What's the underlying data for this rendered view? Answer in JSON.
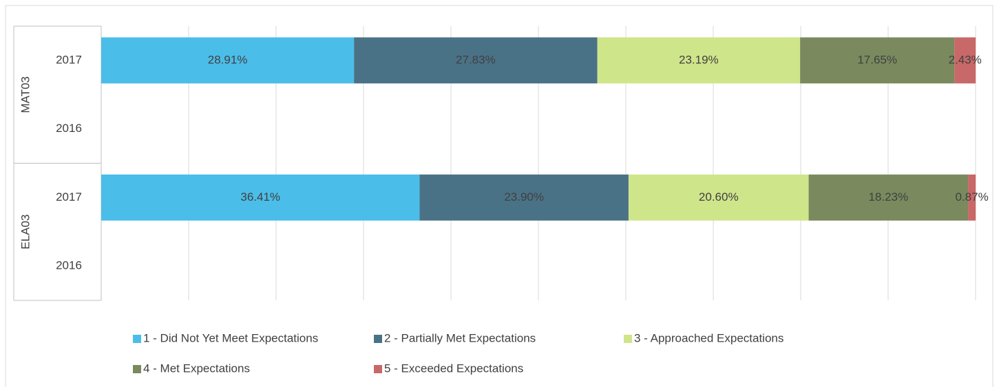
{
  "chart_data": {
    "type": "stacked_bar_horizontal",
    "categories": [
      "2017",
      "2016",
      "2017",
      "2016"
    ],
    "group_labels": [
      "MAT03",
      "ELA03"
    ],
    "xlim": [
      0,
      100
    ],
    "xticks": [
      0,
      10,
      20,
      30,
      40,
      50,
      60,
      70,
      80,
      90,
      100
    ],
    "tick_labels": false,
    "grid": true,
    "legend": "bottom",
    "series": [
      {
        "name": "1 - Did Not Yet Meet Expectations",
        "color": "#4bbde9",
        "values": [
          28.91,
          null,
          36.41,
          null
        ],
        "value_labels": [
          "28.91%",
          null,
          "36.41%",
          null
        ]
      },
      {
        "name": "2 - Partially Met Expectations",
        "color": "#4a7287",
        "values": [
          27.83,
          null,
          23.9,
          null
        ],
        "value_labels": [
          "27.83%",
          null,
          "23.90%",
          null
        ]
      },
      {
        "name": "3 - Approached Expectations",
        "color": "#cfe58a",
        "values": [
          23.19,
          null,
          20.6,
          null
        ],
        "value_labels": [
          "23.19%",
          null,
          "20.60%",
          null
        ]
      },
      {
        "name": "4 - Met Expectations",
        "color": "#7a8a5e",
        "values": [
          17.65,
          null,
          18.23,
          null
        ],
        "value_labels": [
          "17.65%",
          null,
          "18.23%",
          null
        ]
      },
      {
        "name": "5 - Exceeded Expectations",
        "color": "#c96868",
        "values": [
          2.43,
          null,
          0.87,
          null
        ],
        "value_labels": [
          "2.43%",
          null,
          "0.87%",
          null
        ]
      }
    ]
  }
}
